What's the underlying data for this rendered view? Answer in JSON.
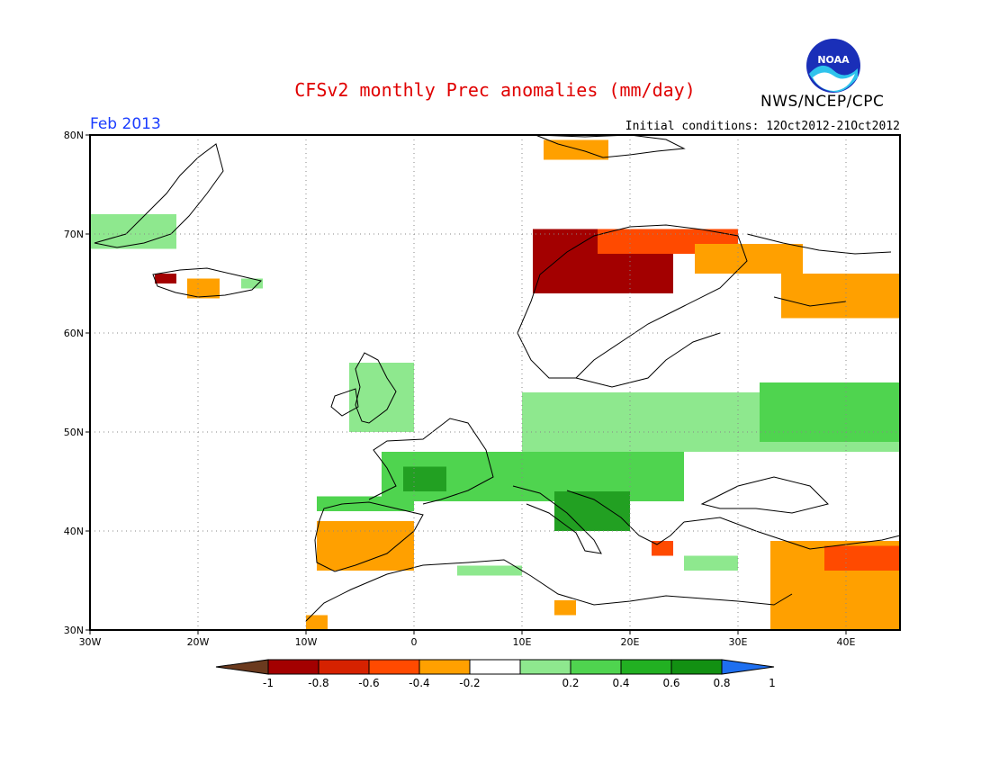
{
  "title": "CFSv2 monthly Prec anomalies (mm/day)",
  "organization": "NWS/NCEP/CPC",
  "logo_text": "NOAA",
  "valid_month": "Feb 2013",
  "initial_conditions": "Initial conditions: 12Oct2012-21Oct2012",
  "map": {
    "lon_range": [
      -30,
      45
    ],
    "lat_range": [
      30,
      80
    ],
    "grid": "dotted",
    "lat_labels": [
      "30N",
      "40N",
      "50N",
      "60N",
      "70N",
      "80N"
    ],
    "lon_labels": [
      "30W",
      "20W",
      "10W",
      "0",
      "10E",
      "20E",
      "30E",
      "40E"
    ]
  },
  "colorbar": {
    "labels": [
      "-1",
      "-0.8",
      "-0.6",
      "-0.4",
      "-0.2",
      "0.2",
      "0.4",
      "0.6",
      "0.8",
      "1"
    ],
    "colors": [
      "#6b3a1e",
      "#a30000",
      "#d62200",
      "#ff4a00",
      "#ffa000",
      "#ffffff",
      "#8ee88e",
      "#4fd44f",
      "#22b022",
      "#129012",
      "#1e6ff0"
    ]
  },
  "colors": {
    "title": "#e00000",
    "month": "#1a3cff",
    "wet_light": "#8ee88e",
    "wet_mid": "#4fd44f",
    "wet_dark": "#22a022",
    "dry_light": "#ffa000",
    "dry_mid": "#ff4a00",
    "dry_dark": "#a30000"
  },
  "anomaly_regions": [
    {
      "name": "greenland-east",
      "level": 0.3,
      "lon": [
        -30,
        -22
      ],
      "lat": [
        68.5,
        72
      ]
    },
    {
      "name": "iceland-south",
      "level": -0.5,
      "lon": [
        -21,
        -18
      ],
      "lat": [
        63.5,
        65.5
      ]
    },
    {
      "name": "iceland-west",
      "level": -0.9,
      "lon": [
        -24,
        -22
      ],
      "lat": [
        65,
        66
      ]
    },
    {
      "name": "iceland-east",
      "level": 0.3,
      "lon": [
        -16,
        -14
      ],
      "lat": [
        64.5,
        65.5
      ]
    },
    {
      "name": "svalbard",
      "level": -0.4,
      "lon": [
        12,
        18
      ],
      "lat": [
        77.5,
        79.5
      ]
    },
    {
      "name": "norway-coast",
      "level": -0.8,
      "lon": [
        11,
        24
      ],
      "lat": [
        64,
        70.5
      ]
    },
    {
      "name": "northern-scandinavia",
      "level": -0.6,
      "lon": [
        17,
        30
      ],
      "lat": [
        68,
        70.5
      ]
    },
    {
      "name": "kola-dry",
      "level": -0.4,
      "lon": [
        26,
        36
      ],
      "lat": [
        66,
        69
      ]
    },
    {
      "name": "russia-northwest",
      "level": -0.4,
      "lon": [
        34,
        45
      ],
      "lat": [
        61.5,
        66
      ]
    },
    {
      "name": "british-isles",
      "level": 0.3,
      "lon": [
        -6,
        0
      ],
      "lat": [
        50,
        57
      ]
    },
    {
      "name": "central-europe-north",
      "level": 0.3,
      "lon": [
        10,
        45
      ],
      "lat": [
        48,
        54
      ]
    },
    {
      "name": "ukraine-russia",
      "level": 0.5,
      "lon": [
        32,
        45
      ],
      "lat": [
        49,
        55
      ]
    },
    {
      "name": "france-alps",
      "level": 0.4,
      "lon": [
        -3,
        25
      ],
      "lat": [
        43,
        48
      ]
    },
    {
      "name": "biscay",
      "level": 0.7,
      "lon": [
        -1,
        3
      ],
      "lat": [
        44,
        46.5
      ]
    },
    {
      "name": "adriatic-balkans",
      "level": 0.6,
      "lon": [
        13,
        20
      ],
      "lat": [
        40,
        44
      ]
    },
    {
      "name": "northern-iberia",
      "level": 0.5,
      "lon": [
        -9,
        0
      ],
      "lat": [
        42,
        43.5
      ]
    },
    {
      "name": "iberia-south",
      "level": -0.4,
      "lon": [
        -9,
        0
      ],
      "lat": [
        36,
        41
      ]
    },
    {
      "name": "iberia-southwest",
      "level": -0.5,
      "lon": [
        -9,
        -7
      ],
      "lat": [
        38,
        39.5
      ]
    },
    {
      "name": "north-africa-west",
      "level": -0.4,
      "lon": [
        -10,
        -8
      ],
      "lat": [
        30,
        31.5
      ]
    },
    {
      "name": "turkey-levant",
      "level": -0.4,
      "lon": [
        33,
        45
      ],
      "lat": [
        30,
        39
      ]
    },
    {
      "name": "east-turkey",
      "level": -0.7,
      "lon": [
        38,
        45
      ],
      "lat": [
        36,
        38.5
      ]
    },
    {
      "name": "greece-dry",
      "level": -0.6,
      "lon": [
        22,
        24
      ],
      "lat": [
        37.5,
        39
      ]
    },
    {
      "name": "libya-dry",
      "level": -0.4,
      "lon": [
        13,
        15
      ],
      "lat": [
        31.5,
        33
      ]
    },
    {
      "name": "aegean-wet",
      "level": 0.3,
      "lon": [
        25,
        30
      ],
      "lat": [
        36,
        37.5
      ]
    },
    {
      "name": "north-africa-wet",
      "level": 0.3,
      "lon": [
        4,
        10
      ],
      "lat": [
        35.5,
        36.5
      ]
    }
  ]
}
